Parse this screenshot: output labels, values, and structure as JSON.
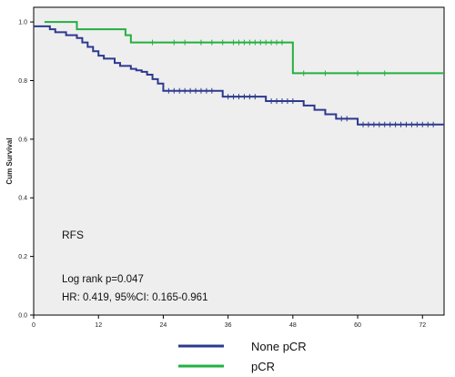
{
  "chart_data": {
    "type": "line",
    "chart_kind": "kaplan-meier step curve with censor ticks",
    "title": "",
    "xlabel": "",
    "ylabel": "Cum Survival",
    "xlim": [
      0,
      76
    ],
    "ylim": [
      0,
      1.05
    ],
    "x_ticks": [
      0,
      12,
      24,
      36,
      48,
      60,
      72
    ],
    "y_ticks": [
      "0.0",
      "0.2",
      "0.4",
      "0.6",
      "0.8",
      "1.0"
    ],
    "grid": false,
    "legend_position": "bottom-center",
    "series": [
      {
        "name": "None pCR",
        "color": "#2b3a8f",
        "steps": [
          [
            0,
            0.985
          ],
          [
            3,
            0.975
          ],
          [
            4,
            0.965
          ],
          [
            6,
            0.955
          ],
          [
            8,
            0.945
          ],
          [
            9,
            0.93
          ],
          [
            10,
            0.915
          ],
          [
            11,
            0.9
          ],
          [
            12,
            0.885
          ],
          [
            13,
            0.875
          ],
          [
            15,
            0.86
          ],
          [
            16,
            0.85
          ],
          [
            18,
            0.84
          ],
          [
            19,
            0.835
          ],
          [
            20,
            0.83
          ],
          [
            21,
            0.82
          ],
          [
            22,
            0.805
          ],
          [
            23,
            0.79
          ],
          [
            24,
            0.765
          ],
          [
            35,
            0.745
          ],
          [
            43,
            0.73
          ],
          [
            50,
            0.715
          ],
          [
            52,
            0.7
          ],
          [
            54,
            0.685
          ],
          [
            56,
            0.67
          ],
          [
            60,
            0.65
          ],
          [
            76,
            0.65
          ]
        ],
        "censored": [
          [
            25,
            0.765
          ],
          [
            26,
            0.765
          ],
          [
            27,
            0.765
          ],
          [
            28,
            0.765
          ],
          [
            29,
            0.765
          ],
          [
            30,
            0.765
          ],
          [
            31,
            0.765
          ],
          [
            32,
            0.765
          ],
          [
            33,
            0.765
          ],
          [
            36,
            0.745
          ],
          [
            37,
            0.745
          ],
          [
            38,
            0.745
          ],
          [
            39,
            0.745
          ],
          [
            40,
            0.745
          ],
          [
            41,
            0.745
          ],
          [
            44,
            0.73
          ],
          [
            45,
            0.73
          ],
          [
            46,
            0.73
          ],
          [
            47,
            0.73
          ],
          [
            48,
            0.73
          ],
          [
            57,
            0.67
          ],
          [
            58,
            0.67
          ],
          [
            61,
            0.65
          ],
          [
            62,
            0.65
          ],
          [
            63,
            0.65
          ],
          [
            64,
            0.65
          ],
          [
            65,
            0.65
          ],
          [
            66,
            0.65
          ],
          [
            67,
            0.65
          ],
          [
            68,
            0.65
          ],
          [
            69,
            0.65
          ],
          [
            70,
            0.65
          ],
          [
            71,
            0.65
          ],
          [
            72,
            0.65
          ],
          [
            73,
            0.65
          ],
          [
            74,
            0.65
          ]
        ]
      },
      {
        "name": "pCR",
        "color": "#22b040",
        "steps": [
          [
            2,
            1.0
          ],
          [
            8,
            0.975
          ],
          [
            17,
            0.955
          ],
          [
            18,
            0.93
          ],
          [
            48,
            0.825
          ],
          [
            76,
            0.825
          ]
        ],
        "censored": [
          [
            22,
            0.93
          ],
          [
            26,
            0.93
          ],
          [
            28,
            0.93
          ],
          [
            31,
            0.93
          ],
          [
            33,
            0.93
          ],
          [
            35,
            0.93
          ],
          [
            37,
            0.93
          ],
          [
            38,
            0.93
          ],
          [
            39,
            0.93
          ],
          [
            40,
            0.93
          ],
          [
            41,
            0.93
          ],
          [
            42,
            0.93
          ],
          [
            43,
            0.93
          ],
          [
            44,
            0.93
          ],
          [
            45,
            0.93
          ],
          [
            46,
            0.93
          ],
          [
            50,
            0.825
          ],
          [
            54,
            0.825
          ],
          [
            60,
            0.825
          ],
          [
            65,
            0.825
          ]
        ]
      }
    ],
    "annotations": {
      "endpoint": "RFS",
      "logrank": "Log rank p=0.047",
      "hr": "HR: 0.419, 95%CI: 0.165-0.961"
    }
  },
  "legend": [
    {
      "text": "None pCR",
      "color": "#2b3a8f"
    },
    {
      "text": "pCR",
      "color": "#22b040"
    }
  ],
  "colors": {
    "plot_background": "#efeeee",
    "frame": "#000000"
  }
}
